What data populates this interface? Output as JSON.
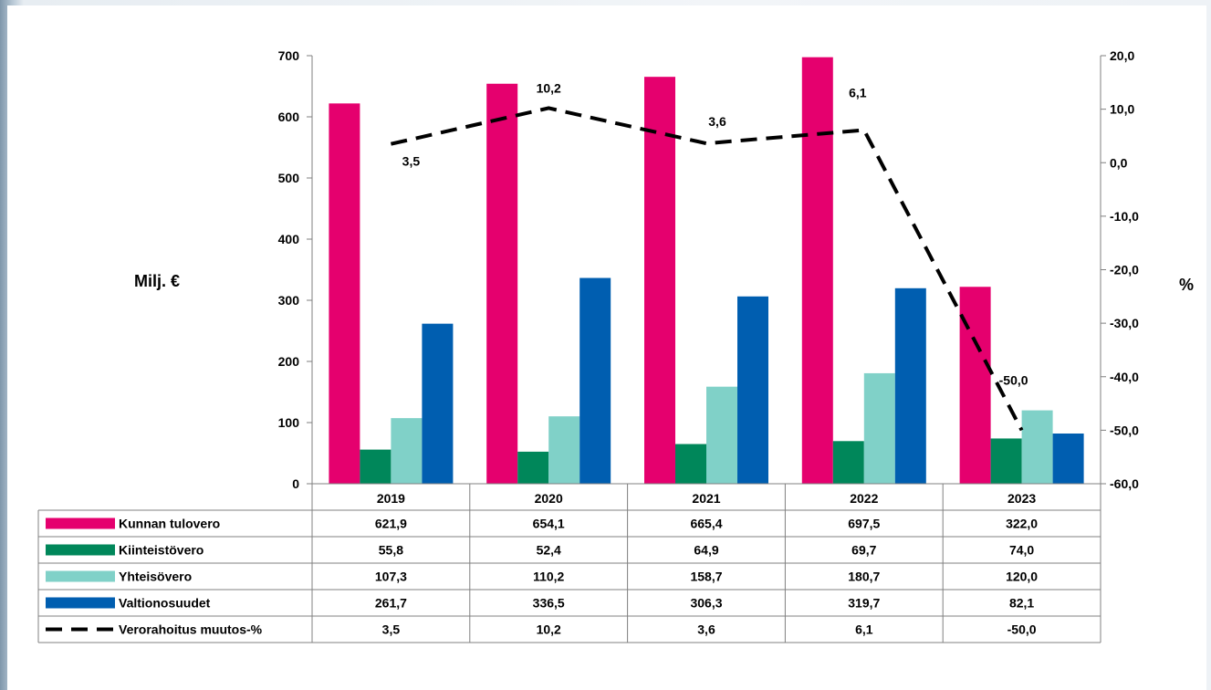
{
  "chart_data": {
    "type": "bar",
    "categories": [
      "2019",
      "2020",
      "2021",
      "2022",
      "2023"
    ],
    "series": [
      {
        "name": "Kunnan tulovero",
        "type": "bar",
        "color": "#e5006e",
        "legend_style": "bar",
        "values": [
          "621,9",
          "654,1",
          "665,4",
          "697,5",
          "322,0"
        ],
        "numeric": [
          621.9,
          654.1,
          665.4,
          697.5,
          322.0
        ]
      },
      {
        "name": "Kiinteistövero",
        "type": "bar",
        "color": "#00875a",
        "legend_style": "bar",
        "values": [
          "55,8",
          "52,4",
          "64,9",
          "69,7",
          "74,0"
        ],
        "numeric": [
          55.8,
          52.4,
          64.9,
          69.7,
          74.0
        ]
      },
      {
        "name": "Yhteisövero",
        "type": "bar",
        "color": "#80d1c8",
        "legend_style": "bar",
        "values": [
          "107,3",
          "110,2",
          "158,7",
          "180,7",
          "120,0"
        ],
        "numeric": [
          107.3,
          110.2,
          158.7,
          180.7,
          120.0
        ]
      },
      {
        "name": "Valtionosuudet",
        "type": "bar",
        "color": "#005eb0",
        "legend_style": "bar",
        "values": [
          "261,7",
          "336,5",
          "306,3",
          "319,7",
          "82,1"
        ],
        "numeric": [
          261.7,
          336.5,
          306.3,
          319.7,
          82.1
        ]
      },
      {
        "name": "Verorahoitus muutos-%",
        "type": "line",
        "axis": "right",
        "color": "#000000",
        "legend_style": "dashed",
        "values": [
          "3,5",
          "10,2",
          "3,6",
          "6,1",
          "-50,0"
        ],
        "numeric": [
          3.5,
          10.2,
          3.6,
          6.1,
          -50.0
        ]
      }
    ],
    "ylabel": "Milj. €",
    "y2label": "%",
    "ylim": [
      0,
      700
    ],
    "y2lim": [
      -60,
      20
    ],
    "yticks": [
      "0",
      "100",
      "200",
      "300",
      "400",
      "500",
      "600",
      "700"
    ],
    "y2ticks": [
      "-60,0",
      "-50,0",
      "-40,0",
      "-30,0",
      "-20,0",
      "-10,0",
      "0,0",
      "10,0",
      "20,0"
    ],
    "line_labels": [
      "3,5",
      "10,2",
      "3,6",
      "6,1",
      "-50,0"
    ],
    "grid": false,
    "legend": "data-table-below"
  }
}
